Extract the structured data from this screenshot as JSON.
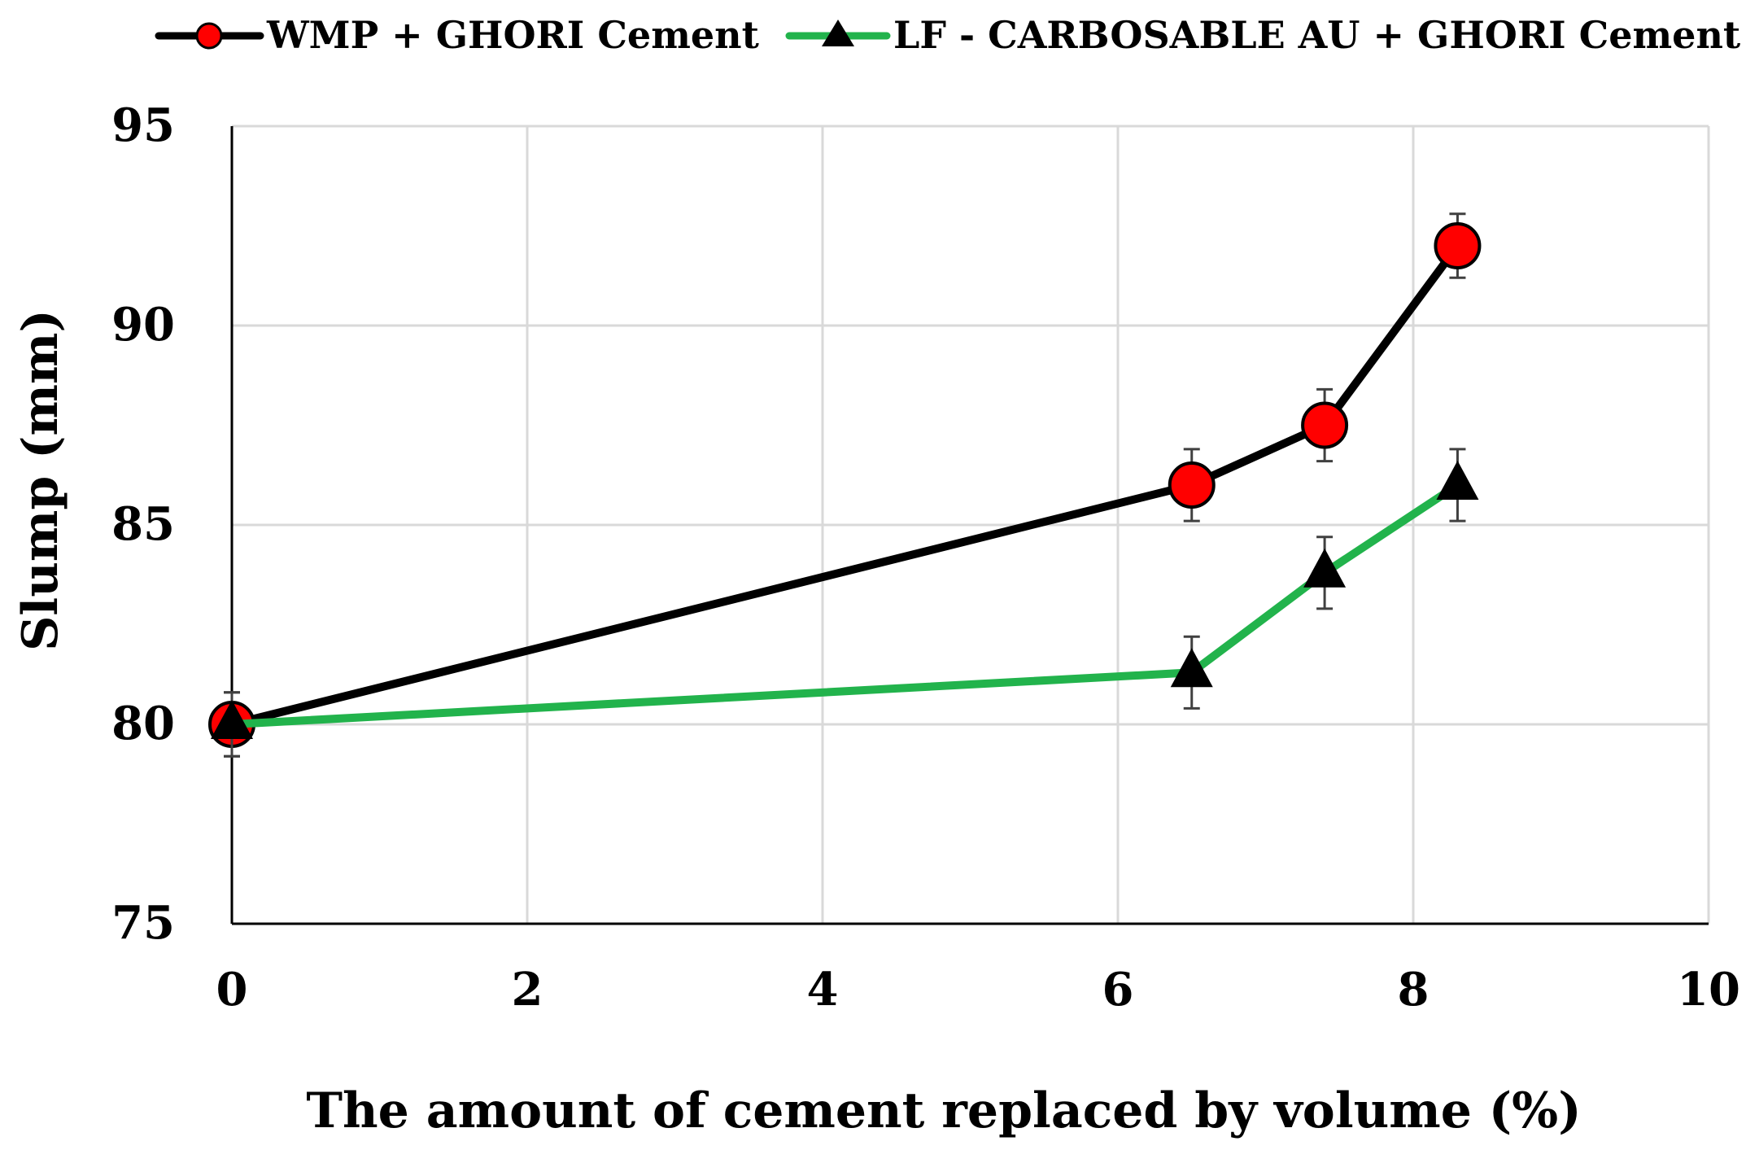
{
  "chart_data": {
    "type": "line",
    "title": "",
    "xlabel": "The amount of cement replaced by volume (%)",
    "ylabel": "Slump (mm)",
    "xlim": [
      0,
      10
    ],
    "ylim": [
      75,
      95
    ],
    "xticks": [
      0,
      2,
      4,
      6,
      8,
      10
    ],
    "yticks": [
      75,
      80,
      85,
      90,
      95
    ],
    "grid": true,
    "legend_position": "top",
    "series": [
      {
        "name": "WMP + GHORI Cement",
        "marker": "circle",
        "line_color": "#000000",
        "marker_color": "#ff0000",
        "x": [
          0,
          6.5,
          7.4,
          8.3
        ],
        "y": [
          80,
          86,
          87.5,
          92
        ],
        "error": [
          0.8,
          0.9,
          0.9,
          0.8
        ]
      },
      {
        "name": "LF - CARBOSABLE AU + GHORI Cement",
        "marker": "triangle",
        "line_color": "#22b34c",
        "marker_color": "#000000",
        "x": [
          0,
          6.5,
          7.4,
          8.3
        ],
        "y": [
          80,
          81.3,
          83.8,
          86
        ],
        "error": [
          0.8,
          0.9,
          0.9,
          0.9
        ]
      }
    ]
  }
}
